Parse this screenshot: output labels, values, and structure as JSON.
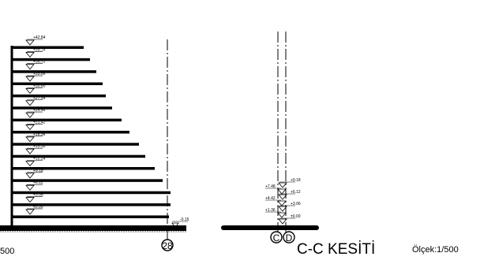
{
  "left_section": {
    "floor_levels": [
      "+42.84",
      "+39.78",
      "+36.72",
      "+33.66",
      "+30.60",
      "+27.54",
      "+24.48",
      "+21.42",
      "+18.36",
      "+15.30",
      "+12.24",
      "+9.18",
      "+6.12",
      "+3.06",
      "±0.00"
    ],
    "ground_level": "-0.15",
    "grid_axis": "28",
    "scale_fragment": "500"
  },
  "right_section": {
    "floor_levels_right": [
      "+9.18",
      "+6.12",
      "+3.06",
      "±0.00"
    ],
    "floor_levels_left": [
      "+7.48",
      "+4.42",
      "+1.36"
    ],
    "grid_axes": [
      "C",
      "D"
    ],
    "title": "C-C KESİTİ",
    "scale": "Ölçek:1/500"
  }
}
